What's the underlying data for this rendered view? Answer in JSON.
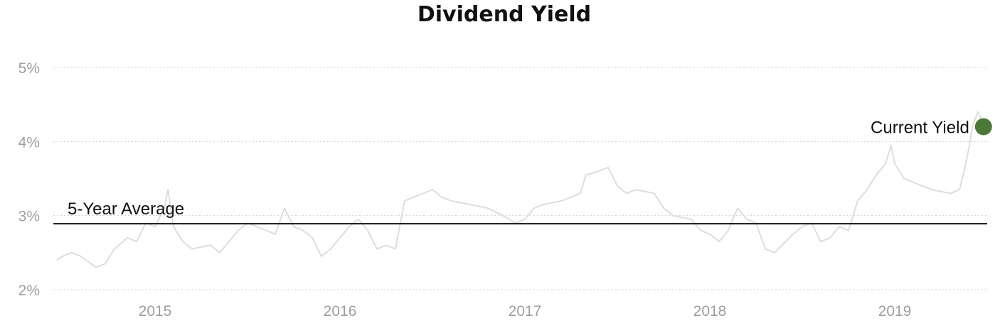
{
  "chart_data": {
    "type": "line",
    "title": "Dividend Yield",
    "xlabel": "",
    "ylabel": "",
    "x_range": [
      2014.45,
      2019.5
    ],
    "ylim": [
      2,
      5
    ],
    "y_ticks": [
      2,
      3,
      4,
      5
    ],
    "y_tick_labels": [
      "2%",
      "3%",
      "4%",
      "5%"
    ],
    "x_ticks": [
      2015,
      2016,
      2017,
      2018,
      2019
    ],
    "x_tick_labels": [
      "2015",
      "2016",
      "2017",
      "2018",
      "2019"
    ],
    "grid": true,
    "colors": {
      "series": "#dddddd",
      "average": "#111111",
      "current": "#4a7a35"
    },
    "series": [
      {
        "x": [
          2014.47,
          2014.5,
          2014.55,
          2014.6,
          2014.68,
          2014.73,
          2014.78,
          2014.85,
          2014.9,
          2014.95,
          2015.0,
          2015.05,
          2015.07,
          2015.1,
          2015.15,
          2015.2,
          2015.3,
          2015.35,
          2015.45,
          2015.5,
          2015.6,
          2015.65,
          2015.7,
          2015.75,
          2015.8,
          2015.85,
          2015.9,
          2015.95,
          2016.0,
          2016.05,
          2016.1,
          2016.15,
          2016.2,
          2016.25,
          2016.3,
          2016.33,
          2016.35,
          2016.4,
          2016.45,
          2016.5,
          2016.55,
          2016.6,
          2016.7,
          2016.8,
          2016.88,
          2016.95,
          2017.0,
          2017.05,
          2017.1,
          2017.2,
          2017.3,
          2017.33,
          2017.4,
          2017.45,
          2017.5,
          2017.55,
          2017.6,
          2017.7,
          2017.75,
          2017.8,
          2017.9,
          2017.95,
          2018.0,
          2018.05,
          2018.1,
          2018.15,
          2018.2,
          2018.25,
          2018.3,
          2018.35,
          2018.45,
          2018.5,
          2018.55,
          2018.6,
          2018.65,
          2018.7,
          2018.75,
          2018.8,
          2018.85,
          2018.9,
          2018.95,
          2018.98,
          2019.0,
          2019.05,
          2019.1,
          2019.2,
          2019.3,
          2019.35,
          2019.38,
          2019.4,
          2019.42,
          2019.45,
          2019.47
        ],
        "values": [
          2.4,
          2.45,
          2.5,
          2.45,
          2.3,
          2.35,
          2.55,
          2.7,
          2.65,
          2.9,
          2.85,
          3.1,
          3.35,
          2.85,
          2.65,
          2.55,
          2.6,
          2.5,
          2.8,
          2.9,
          2.8,
          2.75,
          3.1,
          2.85,
          2.8,
          2.7,
          2.45,
          2.55,
          2.7,
          2.85,
          2.95,
          2.8,
          2.55,
          2.6,
          2.55,
          2.95,
          3.2,
          3.25,
          3.3,
          3.35,
          3.25,
          3.2,
          3.15,
          3.1,
          3.0,
          2.9,
          2.95,
          3.1,
          3.15,
          3.2,
          3.3,
          3.55,
          3.6,
          3.65,
          3.4,
          3.3,
          3.35,
          3.3,
          3.1,
          3.0,
          2.95,
          2.8,
          2.75,
          2.65,
          2.8,
          3.1,
          2.95,
          2.9,
          2.55,
          2.5,
          2.75,
          2.85,
          2.9,
          2.65,
          2.7,
          2.85,
          2.8,
          3.2,
          3.35,
          3.55,
          3.7,
          3.95,
          3.7,
          3.5,
          3.45,
          3.35,
          3.3,
          3.35,
          3.65,
          3.9,
          4.2,
          4.4,
          4.3
        ]
      }
    ],
    "average": {
      "label": "5-Year Average",
      "value": 2.89
    },
    "current": {
      "label": "Current Yield",
      "x": 2019.48,
      "value": 4.2
    }
  }
}
